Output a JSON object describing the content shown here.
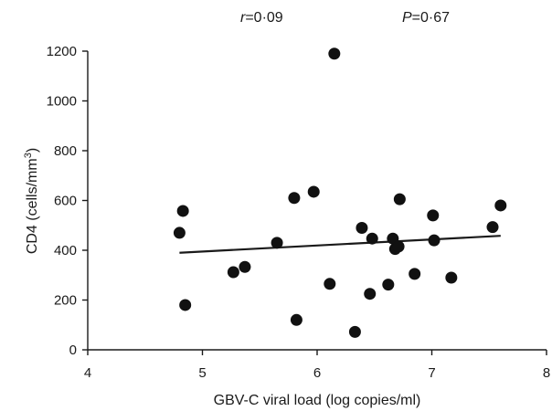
{
  "chart_data": {
    "type": "scatter",
    "xlabel": "GBV-C viral load (log copies/ml)",
    "ylabel_main": "CD4 (cells/mm",
    "ylabel_sup": "3",
    "ylabel_close": ")",
    "xlim": [
      4,
      8
    ],
    "ylim": [
      0,
      1200
    ],
    "x_ticks": [
      4,
      5,
      6,
      7,
      8
    ],
    "y_ticks": [
      0,
      200,
      400,
      600,
      800,
      1000,
      1200
    ],
    "grid": false,
    "annotations": {
      "r_symbol": "r",
      "r_value": "=0·09",
      "p_symbol": "P",
      "p_value": "=0·67"
    },
    "points": [
      {
        "x": 4.8,
        "y": 470
      },
      {
        "x": 4.83,
        "y": 558
      },
      {
        "x": 4.85,
        "y": 180
      },
      {
        "x": 5.27,
        "y": 312
      },
      {
        "x": 5.37,
        "y": 333
      },
      {
        "x": 5.65,
        "y": 430
      },
      {
        "x": 5.8,
        "y": 610
      },
      {
        "x": 5.82,
        "y": 120
      },
      {
        "x": 5.97,
        "y": 635
      },
      {
        "x": 6.11,
        "y": 265
      },
      {
        "x": 6.15,
        "y": 1190
      },
      {
        "x": 6.33,
        "y": 72
      },
      {
        "x": 6.39,
        "y": 490
      },
      {
        "x": 6.46,
        "y": 225
      },
      {
        "x": 6.48,
        "y": 447
      },
      {
        "x": 6.62,
        "y": 262
      },
      {
        "x": 6.66,
        "y": 447
      },
      {
        "x": 6.68,
        "y": 405
      },
      {
        "x": 6.71,
        "y": 415
      },
      {
        "x": 6.72,
        "y": 605
      },
      {
        "x": 6.85,
        "y": 305
      },
      {
        "x": 7.01,
        "y": 540
      },
      {
        "x": 7.02,
        "y": 440
      },
      {
        "x": 7.17,
        "y": 290
      },
      {
        "x": 7.53,
        "y": 493
      },
      {
        "x": 7.6,
        "y": 580
      }
    ],
    "trendline": {
      "x": [
        4.8,
        7.6
      ],
      "y": [
        390,
        458
      ]
    }
  }
}
